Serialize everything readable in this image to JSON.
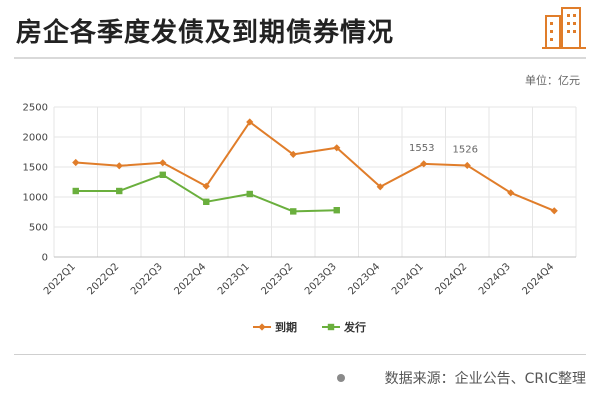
{
  "page": {
    "title": "房企各季度发债及到期债券情况",
    "unit": "单位：亿元",
    "source": "数据来源：企业公告、CRIC整理",
    "logo_icon": "building-icon"
  },
  "colors": {
    "maturity": "#e07d2a",
    "issuance": "#6aaf3d",
    "grid": "#e6e6e6",
    "axis": "#bfbfbf"
  },
  "chart_data": {
    "type": "line",
    "title": "",
    "xlabel": "",
    "ylabel": "",
    "categories": [
      "2022Q1",
      "2022Q2",
      "2022Q3",
      "2022Q4",
      "2023Q1",
      "2023Q2",
      "2023Q3",
      "2023Q4",
      "2024Q1",
      "2024Q2",
      "2024Q3",
      "2024Q4"
    ],
    "ylim": [
      0,
      2500
    ],
    "yticks": [
      0,
      500,
      1000,
      1500,
      2000,
      2500
    ],
    "grid": true,
    "legend_position": "bottom",
    "series": [
      {
        "name": "到期",
        "color": "#e07d2a",
        "marker": "diamond",
        "values": [
          1575,
          1520,
          1570,
          1180,
          2250,
          1710,
          1820,
          1170,
          1553,
          1526,
          1070,
          770
        ]
      },
      {
        "name": "发行",
        "color": "#6aaf3d",
        "marker": "square",
        "values": [
          1100,
          1100,
          1370,
          920,
          1050,
          760,
          780,
          null,
          null,
          null,
          null,
          null
        ]
      }
    ],
    "data_labels": [
      {
        "series": 0,
        "index": 8,
        "text": "1553"
      },
      {
        "series": 0,
        "index": 9,
        "text": "1526"
      }
    ]
  }
}
